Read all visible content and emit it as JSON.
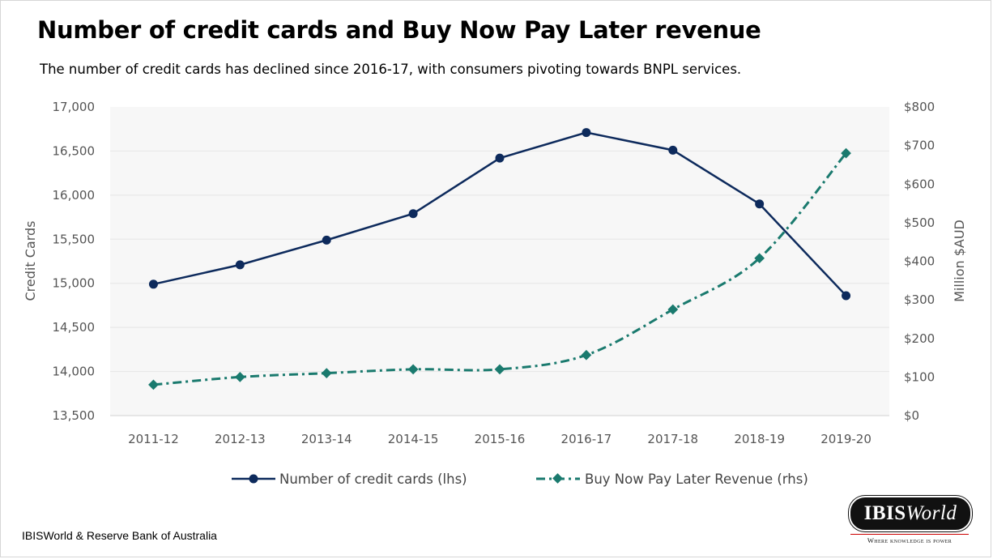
{
  "title": "Number of credit cards and Buy Now Pay Later revenue",
  "subtitle": "The number of credit cards has declined since 2016-17, with consumers pivoting towards BNPL services.",
  "source": "IBISWorld & Reserve Bank of Australia",
  "logo": {
    "name_bold": "IBIS",
    "name_italic": "World",
    "tagline": "Where knowledge is power"
  },
  "colors": {
    "cards": "#0d2a5c",
    "bnpl": "#1a7a6e",
    "plot_bg": "#f7f7f7",
    "grid": "#e6e6e6"
  },
  "chart_data": {
    "type": "line",
    "categories": [
      "2011-12",
      "2012-13",
      "2013-14",
      "2014-15",
      "2015-16",
      "2016-17",
      "2017-18",
      "2018-19",
      "2019-20"
    ],
    "series": [
      {
        "name": "Number of credit cards (lhs)",
        "axis": "left",
        "values": [
          14990,
          15210,
          15490,
          15790,
          16420,
          16710,
          16510,
          15900,
          14860
        ]
      },
      {
        "name": "Buy Now Pay Later Revenue (rhs)",
        "axis": "right",
        "values": [
          80,
          100,
          110,
          120,
          120,
          157,
          275,
          408,
          680
        ]
      }
    ],
    "ylabel_left": "Credit Cards",
    "ylabel_right": "Million $AUD",
    "ylim_left": [
      13500,
      17000
    ],
    "ylim_right": [
      0,
      800
    ],
    "yticks_left": [
      "17,000",
      "16,500",
      "16,000",
      "15,500",
      "15,000",
      "14,500",
      "14,000",
      "13,500"
    ],
    "yticks_right": [
      "$800",
      "$700",
      "$600",
      "$500",
      "$400",
      "$300",
      "$200",
      "$100",
      "$0"
    ],
    "grid": true,
    "legend_position": "bottom"
  }
}
